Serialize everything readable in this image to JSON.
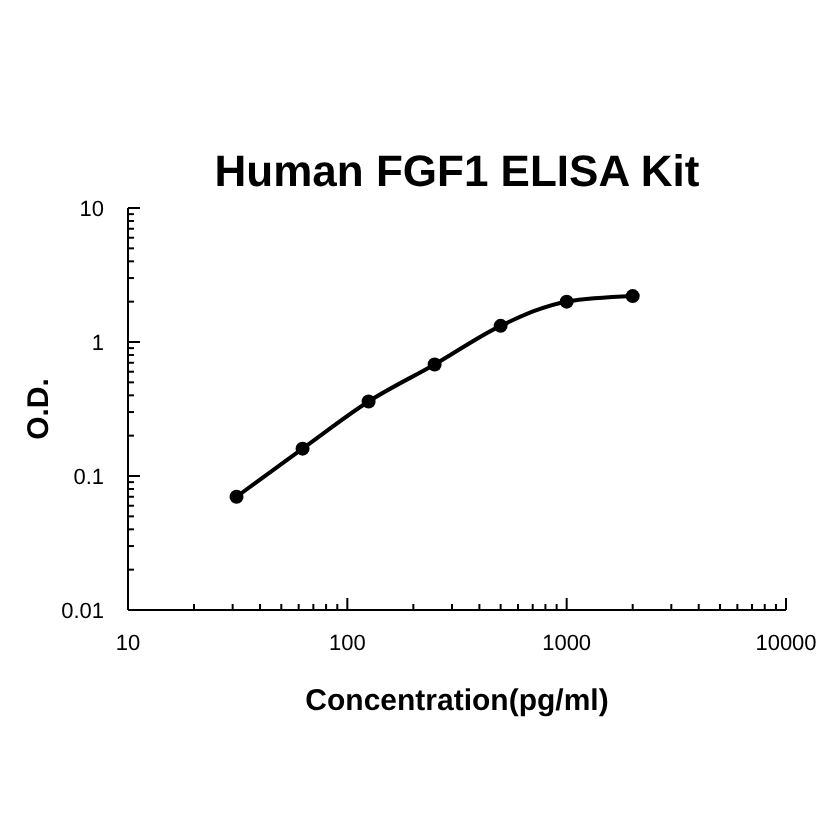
{
  "chart_data": {
    "type": "line",
    "title": "Human FGF1 ELISA Kit",
    "xlabel": "Concentration(pg/ml)",
    "ylabel": "O.D.",
    "log": "xy",
    "x": [
      31.25,
      62.5,
      125,
      250,
      500,
      1000,
      2000
    ],
    "series": [
      {
        "color": "#000000",
        "values": [
          0.07,
          0.16,
          0.36,
          0.68,
          1.32,
          2.0,
          2.2
        ]
      }
    ],
    "xlim": [
      10,
      10000
    ],
    "xticks": [
      10,
      100,
      1000,
      10000
    ],
    "ylim": [
      0.01,
      10
    ],
    "yticks": [
      0.01,
      0.1,
      1,
      10
    ],
    "grid": false,
    "marker": "circle",
    "line_style": "solid"
  }
}
